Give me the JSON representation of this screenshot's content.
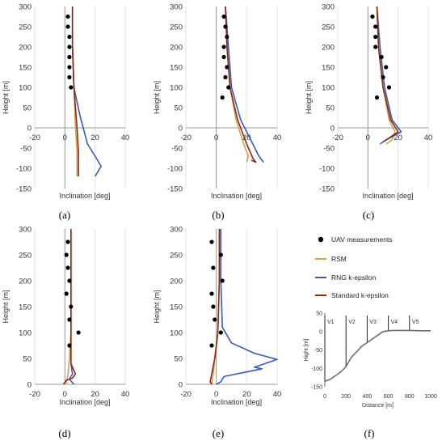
{
  "chart_data": [
    {
      "panel_label": "(a)",
      "type": "line",
      "xlabel": "Inclination [deg]",
      "ylabel": "Height [m]",
      "xlim": [
        -20,
        40
      ],
      "ylim": [
        -150,
        300
      ],
      "xticks": [
        -20,
        0,
        20,
        40
      ],
      "yticks": [
        -150,
        -100,
        -50,
        0,
        50,
        100,
        150,
        200,
        250,
        300
      ],
      "uav_points": [
        [
          2,
          275
        ],
        [
          2,
          250
        ],
        [
          3,
          225
        ],
        [
          3,
          200
        ],
        [
          3,
          175
        ],
        [
          3,
          150
        ],
        [
          3,
          125
        ],
        [
          4,
          100
        ]
      ],
      "series": [
        {
          "key": "rsm",
          "points": [
            [
              5,
              300
            ],
            [
              5,
              200
            ],
            [
              6,
              100
            ],
            [
              7,
              0
            ],
            [
              8,
              -60
            ],
            [
              8,
              -120
            ]
          ]
        },
        {
          "key": "rng",
          "points": [
            [
              5,
              300
            ],
            [
              5,
              200
            ],
            [
              6,
              100
            ],
            [
              10,
              30
            ],
            [
              15,
              -40
            ],
            [
              20,
              -70
            ],
            [
              24,
              -95
            ],
            [
              20,
              -120
            ]
          ]
        },
        {
          "key": "std",
          "points": [
            [
              5,
              300
            ],
            [
              5,
              200
            ],
            [
              6,
              100
            ],
            [
              8,
              0
            ],
            [
              9,
              -60
            ],
            [
              9,
              -120
            ]
          ]
        }
      ]
    },
    {
      "panel_label": "(b)",
      "type": "line",
      "xlabel": "Inclination [deg]",
      "ylabel": "Height [m]",
      "xlim": [
        -20,
        40
      ],
      "ylim": [
        -150,
        300
      ],
      "xticks": [
        -20,
        0,
        20,
        40
      ],
      "yticks": [
        -150,
        -100,
        -50,
        0,
        50,
        100,
        150,
        200,
        250,
        300
      ],
      "uav_points": [
        [
          5,
          275
        ],
        [
          6,
          250
        ],
        [
          7,
          225
        ],
        [
          5,
          200
        ],
        [
          5,
          175
        ],
        [
          7,
          150
        ],
        [
          6,
          125
        ],
        [
          8,
          100
        ],
        [
          4,
          75
        ]
      ],
      "series": [
        {
          "key": "rsm",
          "points": [
            [
              6,
              300
            ],
            [
              7,
              200
            ],
            [
              9,
              100
            ],
            [
              13,
              20
            ],
            [
              18,
              -40
            ],
            [
              21,
              -70
            ],
            [
              20,
              -85
            ]
          ]
        },
        {
          "key": "rng",
          "points": [
            [
              6,
              300
            ],
            [
              8,
              200
            ],
            [
              10,
              100
            ],
            [
              16,
              20
            ],
            [
              24,
              -40
            ],
            [
              28,
              -70
            ],
            [
              31,
              -85
            ]
          ]
        },
        {
          "key": "std",
          "points": [
            [
              6,
              300
            ],
            [
              7,
              200
            ],
            [
              9,
              100
            ],
            [
              14,
              20
            ],
            [
              20,
              -40
            ],
            [
              24,
              -75
            ],
            [
              26,
              -85
            ],
            [
              23,
              -80
            ]
          ]
        }
      ]
    },
    {
      "panel_label": "(c)",
      "type": "line",
      "xlabel": "Inclination [deg]",
      "ylabel": "Height [m]",
      "xlim": [
        -20,
        40
      ],
      "ylim": [
        -150,
        300
      ],
      "xticks": [
        -20,
        0,
        20,
        40
      ],
      "yticks": [
        -150,
        -100,
        -50,
        0,
        50,
        100,
        150,
        200,
        250,
        300
      ],
      "uav_points": [
        [
          3,
          275
        ],
        [
          5,
          250
        ],
        [
          5,
          225
        ],
        [
          5,
          200
        ],
        [
          9,
          175
        ],
        [
          12,
          150
        ],
        [
          10,
          125
        ],
        [
          14,
          100
        ],
        [
          6,
          75
        ]
      ],
      "series": [
        {
          "key": "rsm",
          "points": [
            [
              6,
              300
            ],
            [
              7,
              200
            ],
            [
              10,
              100
            ],
            [
              14,
              20
            ],
            [
              18,
              -10
            ],
            [
              16,
              -30
            ],
            [
              12,
              -40
            ]
          ]
        },
        {
          "key": "rng",
          "points": [
            [
              6,
              300
            ],
            [
              8,
              200
            ],
            [
              11,
              100
            ],
            [
              16,
              20
            ],
            [
              22,
              -10
            ],
            [
              12,
              -30
            ],
            [
              8,
              -40
            ]
          ]
        },
        {
          "key": "std",
          "points": [
            [
              6,
              300
            ],
            [
              7,
              200
            ],
            [
              10,
              100
            ],
            [
              15,
              20
            ],
            [
              20,
              -10
            ],
            [
              14,
              -25
            ],
            [
              10,
              -35
            ]
          ]
        }
      ]
    },
    {
      "panel_label": "(d)",
      "type": "line",
      "xlabel": "Inclination [deg]",
      "ylabel": "Height [m]",
      "xlim": [
        -20,
        40
      ],
      "ylim": [
        0,
        300
      ],
      "xticks": [
        -20,
        0,
        20,
        40
      ],
      "yticks": [
        0,
        50,
        100,
        150,
        200,
        250,
        300
      ],
      "uav_points": [
        [
          2,
          275
        ],
        [
          1,
          250
        ],
        [
          2,
          225
        ],
        [
          3,
          200
        ],
        [
          1,
          175
        ],
        [
          4,
          150
        ],
        [
          3,
          125
        ],
        [
          9,
          100
        ],
        [
          3,
          75
        ]
      ],
      "series": [
        {
          "key": "rsm",
          "points": [
            [
              4,
              300
            ],
            [
              4,
              200
            ],
            [
              4,
              100
            ],
            [
              3,
              50
            ],
            [
              2,
              20
            ],
            [
              1,
              0
            ]
          ]
        },
        {
          "key": "rng",
          "points": [
            [
              4,
              300
            ],
            [
              4,
              200
            ],
            [
              4,
              100
            ],
            [
              4,
              40
            ],
            [
              5,
              20
            ],
            [
              3,
              10
            ],
            [
              6,
              0
            ]
          ]
        },
        {
          "key": "std",
          "points": [
            [
              4,
              300
            ],
            [
              4,
              200
            ],
            [
              4,
              100
            ],
            [
              4,
              40
            ],
            [
              7,
              20
            ],
            [
              5,
              12
            ],
            [
              1,
              8
            ],
            [
              -1,
              0
            ]
          ]
        }
      ]
    },
    {
      "panel_label": "(e)",
      "type": "line",
      "xlabel": "Inclination [deg]",
      "ylabel": "Height [m]",
      "xlim": [
        -20,
        40
      ],
      "ylim": [
        0,
        300
      ],
      "xticks": [
        -20,
        0,
        20,
        40
      ],
      "yticks": [
        0,
        50,
        100,
        150,
        200,
        250,
        300
      ],
      "uav_points": [
        [
          -3,
          275
        ],
        [
          3,
          250
        ],
        [
          -2,
          225
        ],
        [
          4,
          200
        ],
        [
          -3,
          175
        ],
        [
          -2,
          150
        ],
        [
          -1,
          125
        ],
        [
          3,
          100
        ],
        [
          -3,
          75
        ]
      ],
      "series": [
        {
          "key": "rsm",
          "points": [
            [
              2,
              300
            ],
            [
              2,
              200
            ],
            [
              1,
              100
            ],
            [
              -1,
              50
            ],
            [
              -2,
              20
            ],
            [
              -3,
              0
            ]
          ]
        },
        {
          "key": "rng",
          "points": [
            [
              3,
              300
            ],
            [
              3,
              200
            ],
            [
              4,
              110
            ],
            [
              10,
              80
            ],
            [
              25,
              60
            ],
            [
              40,
              48
            ],
            [
              25,
              33
            ],
            [
              30,
              30
            ],
            [
              5,
              15
            ],
            [
              3,
              5
            ],
            [
              0,
              0
            ]
          ]
        },
        {
          "key": "std",
          "points": [
            [
              2,
              300
            ],
            [
              2,
              200
            ],
            [
              1,
              100
            ],
            [
              -1,
              50
            ],
            [
              -3,
              20
            ],
            [
              -4,
              5
            ],
            [
              -3,
              0
            ]
          ]
        }
      ]
    }
  ],
  "legend": {
    "items": [
      {
        "key": "uav",
        "label": "UAV measurements",
        "marker": "dot",
        "color": "#000000"
      },
      {
        "key": "rsm",
        "label": "RSM",
        "color": "#d8a24a"
      },
      {
        "key": "rng",
        "label": "RNG k-epsilon",
        "color": "#3a5ab8"
      },
      {
        "key": "std",
        "label": "Standard k-epsilon",
        "color": "#8a2b12"
      }
    ]
  },
  "terrain": {
    "panel_label": "(f)",
    "xlabel": "Distance [m]",
    "ylabel": "Hight [m]",
    "xlim": [
      0,
      1000
    ],
    "ylim": [
      -150,
      50
    ],
    "xticks": [
      0,
      200,
      400,
      600,
      800,
      1000
    ],
    "yticks": [
      -150,
      -100,
      -50,
      0,
      50
    ],
    "profile": [
      [
        0,
        -135
      ],
      [
        50,
        -130
      ],
      [
        100,
        -120
      ],
      [
        150,
        -110
      ],
      [
        200,
        -95
      ],
      [
        250,
        -70
      ],
      [
        300,
        -55
      ],
      [
        350,
        -40
      ],
      [
        400,
        -30
      ],
      [
        450,
        -20
      ],
      [
        500,
        -10
      ],
      [
        550,
        0
      ],
      [
        600,
        2
      ],
      [
        650,
        3
      ],
      [
        700,
        3
      ],
      [
        800,
        3
      ],
      [
        900,
        2
      ],
      [
        1000,
        2
      ]
    ],
    "verticals": [
      {
        "label": "V1",
        "x": 0
      },
      {
        "label": "V2",
        "x": 200
      },
      {
        "label": "V3",
        "x": 400
      },
      {
        "label": "V4",
        "x": 600
      },
      {
        "label": "V5",
        "x": 800
      }
    ]
  }
}
